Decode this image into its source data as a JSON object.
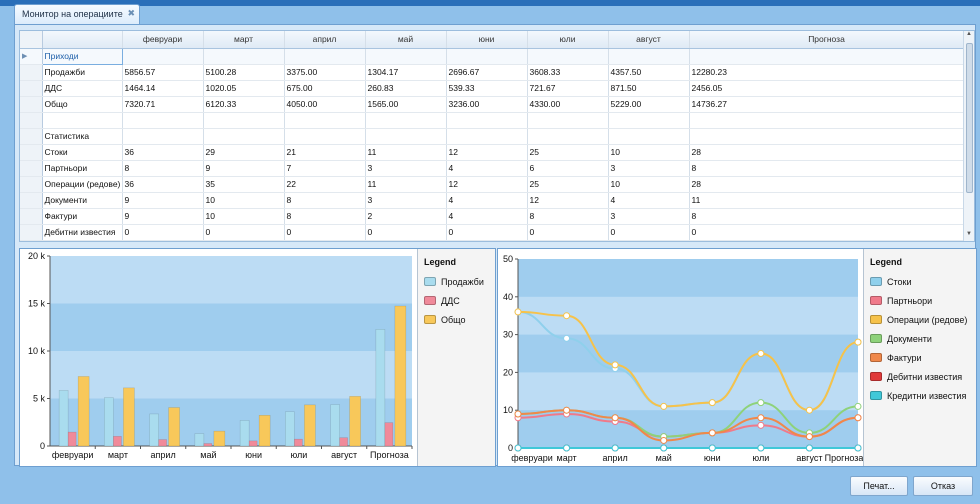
{
  "tab": {
    "title": "Монитор на операциите",
    "close": "✖"
  },
  "grid": {
    "columns": [
      "",
      "февруари",
      "март",
      "април",
      "май",
      "юни",
      "юли",
      "август",
      "Прогноза"
    ],
    "rows": [
      {
        "type": "group",
        "cells": [
          "Приходи",
          "",
          "",
          "",
          "",
          "",
          "",
          "",
          ""
        ]
      },
      {
        "type": "row",
        "cells": [
          "Продажби",
          "5856.57",
          "5100.28",
          "3375.00",
          "1304.17",
          "2696.67",
          "3608.33",
          "4357.50",
          "12280.23"
        ]
      },
      {
        "type": "row",
        "cells": [
          "ДДС",
          "1464.14",
          "1020.05",
          "675.00",
          "260.83",
          "539.33",
          "721.67",
          "871.50",
          "2456.05"
        ]
      },
      {
        "type": "row",
        "cells": [
          "Общо",
          "7320.71",
          "6120.33",
          "4050.00",
          "1565.00",
          "3236.00",
          "4330.00",
          "5229.00",
          "14736.27"
        ]
      },
      {
        "type": "row",
        "cells": [
          "",
          "",
          "",
          "",
          "",
          "",
          "",
          "",
          ""
        ]
      },
      {
        "type": "row",
        "cells": [
          "Статистика",
          "",
          "",
          "",
          "",
          "",
          "",
          "",
          ""
        ]
      },
      {
        "type": "row",
        "cells": [
          "Стоки",
          "36",
          "29",
          "21",
          "11",
          "12",
          "25",
          "10",
          "28"
        ]
      },
      {
        "type": "row",
        "cells": [
          "Партньори",
          "8",
          "9",
          "7",
          "3",
          "4",
          "6",
          "3",
          "8"
        ]
      },
      {
        "type": "row",
        "cells": [
          "Операции (редове)",
          "36",
          "35",
          "22",
          "11",
          "12",
          "25",
          "10",
          "28"
        ]
      },
      {
        "type": "row",
        "cells": [
          "Документи",
          "9",
          "10",
          "8",
          "3",
          "4",
          "12",
          "4",
          "11"
        ]
      },
      {
        "type": "row",
        "cells": [
          "Фактури",
          "9",
          "10",
          "8",
          "2",
          "4",
          "8",
          "3",
          "8"
        ]
      },
      {
        "type": "row",
        "cells": [
          "Дебитни известия",
          "0",
          "0",
          "0",
          "0",
          "0",
          "0",
          "0",
          "0"
        ]
      }
    ]
  },
  "chart_data": [
    {
      "type": "bar",
      "categories": [
        "февруари",
        "март",
        "април",
        "май",
        "юни",
        "юли",
        "август",
        "Прогноза"
      ],
      "ylim": [
        0,
        20000
      ],
      "yticks": [
        "0",
        "5 k",
        "10 k",
        "15 k",
        "20 k"
      ],
      "series": [
        {
          "name": "Продажби",
          "color": "#a9dcee",
          "values": [
            5856.57,
            5100.28,
            3375.0,
            1304.17,
            2696.67,
            3608.33,
            4357.5,
            12280.23
          ]
        },
        {
          "name": "ДДС",
          "color": "#f08a9a",
          "values": [
            1464.14,
            1020.05,
            675.0,
            260.83,
            539.33,
            721.67,
            871.5,
            2456.05
          ]
        },
        {
          "name": "Общо",
          "color": "#f8c85a",
          "values": [
            7320.71,
            6120.33,
            4050.0,
            1565.0,
            3236.0,
            4330.0,
            5229.0,
            14736.27
          ]
        }
      ],
      "legend_title": "Legend"
    },
    {
      "type": "line",
      "categories": [
        "февруари",
        "март",
        "април",
        "май",
        "юни",
        "юли",
        "август",
        "Прогноза"
      ],
      "ylim": [
        0,
        50
      ],
      "yticks": [
        "0",
        "10",
        "20",
        "30",
        "40",
        "50"
      ],
      "series": [
        {
          "name": "Стоки",
          "color": "#8fd0ec",
          "values": [
            36,
            29,
            21,
            11,
            12,
            25,
            10,
            28
          ]
        },
        {
          "name": "Партньори",
          "color": "#f07a8a",
          "values": [
            8,
            9,
            7,
            3,
            4,
            6,
            3,
            8
          ]
        },
        {
          "name": "Операции (редове)",
          "color": "#f6c24a",
          "values": [
            36,
            35,
            22,
            11,
            12,
            25,
            10,
            28
          ]
        },
        {
          "name": "Документи",
          "color": "#8ed27a",
          "values": [
            9,
            10,
            8,
            3,
            4,
            12,
            4,
            11
          ]
        },
        {
          "name": "Фактури",
          "color": "#f0884a",
          "values": [
            9,
            10,
            8,
            2,
            4,
            8,
            3,
            8
          ]
        },
        {
          "name": "Дебитни известия",
          "color": "#e03a3a",
          "values": [
            0,
            0,
            0,
            0,
            0,
            0,
            0,
            0
          ]
        },
        {
          "name": "Кредитни известия",
          "color": "#40c8d8",
          "values": [
            0,
            0,
            0,
            0,
            0,
            0,
            0,
            0
          ]
        }
      ],
      "legend_title": "Legend"
    }
  ],
  "buttons": {
    "print": "Печат...",
    "cancel": "Отказ"
  }
}
